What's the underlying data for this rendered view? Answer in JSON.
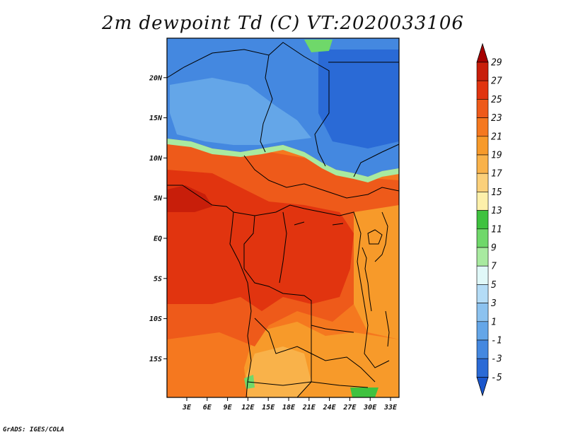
{
  "title": "2m dewpoint Td (C) VT:2020033106",
  "credit": "GrADS: IGES/COLA",
  "map": {
    "lat_ticks": [
      {
        "lat": 20,
        "label": "20N"
      },
      {
        "lat": 15,
        "label": "15N"
      },
      {
        "lat": 10,
        "label": "10N"
      },
      {
        "lat": 5,
        "label": "5N"
      },
      {
        "lat": 0,
        "label": "EQ"
      },
      {
        "lat": -5,
        "label": "5S"
      },
      {
        "lat": -10,
        "label": "10S"
      },
      {
        "lat": -15,
        "label": "15S"
      }
    ],
    "lon_ticks": [
      {
        "lon": 3,
        "label": "3E"
      },
      {
        "lon": 6,
        "label": "6E"
      },
      {
        "lon": 9,
        "label": "9E"
      },
      {
        "lon": 12,
        "label": "12E"
      },
      {
        "lon": 15,
        "label": "15E"
      },
      {
        "lon": 18,
        "label": "18E"
      },
      {
        "lon": 21,
        "label": "21E"
      },
      {
        "lon": 24,
        "label": "24E"
      },
      {
        "lon": 27,
        "label": "27E"
      },
      {
        "lon": 30,
        "label": "30E"
      },
      {
        "lon": 33,
        "label": "33E"
      }
    ]
  },
  "colorbar": {
    "levels": [
      {
        "label": "29",
        "color": "#a50000"
      },
      {
        "label": "27",
        "color": "#c81e0a"
      },
      {
        "label": "25",
        "color": "#e1340f"
      },
      {
        "label": "23",
        "color": "#ee5a1a"
      },
      {
        "label": "21",
        "color": "#f5781f"
      },
      {
        "label": "19",
        "color": "#f79a2a"
      },
      {
        "label": "17",
        "color": "#f9b24a"
      },
      {
        "label": "15",
        "color": "#fbd07a"
      },
      {
        "label": "13",
        "color": "#fdf0aa"
      },
      {
        "label": "11",
        "color": "#3fc23f"
      },
      {
        "label": "9",
        "color": "#6fd86a"
      },
      {
        "label": "7",
        "color": "#a8eaa0"
      },
      {
        "label": "5",
        "color": "#e0f8f8"
      },
      {
        "label": "3",
        "color": "#b4dcf6"
      },
      {
        "label": "1",
        "color": "#8cc2ef"
      },
      {
        "label": "-1",
        "color": "#64a6e8"
      },
      {
        "label": "-3",
        "color": "#4488e0"
      },
      {
        "label": "-5",
        "color": "#2a6ad6"
      }
    ],
    "bottom_color": "#1a56cc"
  }
}
